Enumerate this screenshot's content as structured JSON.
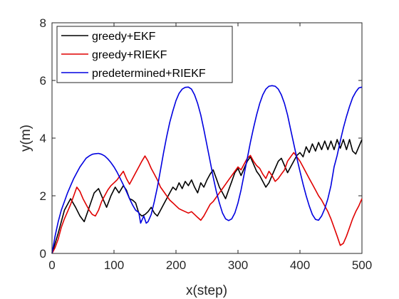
{
  "chart_data": {
    "type": "line",
    "title": "",
    "xlabel": "x(step)",
    "ylabel": "y(m)",
    "xlim": [
      0,
      500
    ],
    "ylim": [
      0,
      8
    ],
    "xticks": [
      "0",
      "100",
      "200",
      "300",
      "400",
      "500"
    ],
    "yticks": [
      "0",
      "2",
      "4",
      "6",
      "8"
    ],
    "grid": false,
    "legend_position": "top-left",
    "series": [
      {
        "name": "greedy+EKF",
        "color": "#000000",
        "points": [
          [
            0,
            0
          ],
          [
            10,
            0.7
          ],
          [
            20,
            1.5
          ],
          [
            30,
            1.9
          ],
          [
            38,
            1.6
          ],
          [
            45,
            1.3
          ],
          [
            52,
            1.1
          ],
          [
            60,
            1.6
          ],
          [
            68,
            2.1
          ],
          [
            75,
            2.25
          ],
          [
            82,
            1.9
          ],
          [
            88,
            1.6
          ],
          [
            95,
            2.0
          ],
          [
            102,
            2.3
          ],
          [
            108,
            2.1
          ],
          [
            115,
            2.35
          ],
          [
            120,
            2.2
          ],
          [
            125,
            1.9
          ],
          [
            130,
            1.85
          ],
          [
            135,
            1.75
          ],
          [
            140,
            1.4
          ],
          [
            145,
            1.3
          ],
          [
            150,
            1.35
          ],
          [
            155,
            1.45
          ],
          [
            160,
            1.6
          ],
          [
            165,
            1.4
          ],
          [
            170,
            1.3
          ],
          [
            175,
            1.5
          ],
          [
            180,
            1.7
          ],
          [
            185,
            1.9
          ],
          [
            190,
            2.1
          ],
          [
            195,
            2.3
          ],
          [
            200,
            2.2
          ],
          [
            205,
            2.45
          ],
          [
            210,
            2.25
          ],
          [
            215,
            2.5
          ],
          [
            220,
            2.35
          ],
          [
            225,
            2.55
          ],
          [
            230,
            2.3
          ],
          [
            235,
            2.1
          ],
          [
            240,
            2.45
          ],
          [
            245,
            2.3
          ],
          [
            250,
            2.55
          ],
          [
            255,
            2.75
          ],
          [
            260,
            2.9
          ],
          [
            265,
            2.6
          ],
          [
            270,
            2.3
          ],
          [
            275,
            2.1
          ],
          [
            280,
            1.9
          ],
          [
            285,
            2.2
          ],
          [
            290,
            2.5
          ],
          [
            295,
            2.8
          ],
          [
            300,
            2.95
          ],
          [
            305,
            2.7
          ],
          [
            310,
            2.95
          ],
          [
            315,
            3.2
          ],
          [
            320,
            3.35
          ],
          [
            325,
            3.1
          ],
          [
            330,
            2.85
          ],
          [
            335,
            2.7
          ],
          [
            340,
            2.5
          ],
          [
            345,
            2.3
          ],
          [
            350,
            2.45
          ],
          [
            355,
            2.7
          ],
          [
            360,
            2.95
          ],
          [
            365,
            3.2
          ],
          [
            370,
            3.3
          ],
          [
            375,
            3.05
          ],
          [
            380,
            2.8
          ],
          [
            385,
            3.0
          ],
          [
            390,
            3.2
          ],
          [
            395,
            3.4
          ],
          [
            400,
            3.5
          ],
          [
            405,
            3.35
          ],
          [
            410,
            3.7
          ],
          [
            415,
            3.5
          ],
          [
            420,
            3.8
          ],
          [
            425,
            3.55
          ],
          [
            430,
            3.85
          ],
          [
            435,
            3.6
          ],
          [
            440,
            3.9
          ],
          [
            445,
            3.6
          ],
          [
            450,
            3.9
          ],
          [
            455,
            3.6
          ],
          [
            460,
            3.95
          ],
          [
            465,
            3.65
          ],
          [
            470,
            3.95
          ],
          [
            475,
            3.6
          ],
          [
            480,
            3.95
          ],
          [
            485,
            3.55
          ],
          [
            490,
            3.45
          ],
          [
            495,
            3.7
          ],
          [
            500,
            3.95
          ]
        ]
      },
      {
        "name": "greedy+RIEKF",
        "color": "#e00000",
        "points": [
          [
            0,
            0
          ],
          [
            5,
            0.2
          ],
          [
            10,
            0.5
          ],
          [
            15,
            0.9
          ],
          [
            20,
            1.2
          ],
          [
            25,
            1.45
          ],
          [
            30,
            1.7
          ],
          [
            35,
            2.0
          ],
          [
            40,
            2.3
          ],
          [
            45,
            2.15
          ],
          [
            50,
            1.9
          ],
          [
            55,
            1.7
          ],
          [
            60,
            1.5
          ],
          [
            65,
            1.35
          ],
          [
            70,
            1.3
          ],
          [
            75,
            1.5
          ],
          [
            80,
            1.8
          ],
          [
            85,
            2.0
          ],
          [
            90,
            2.2
          ],
          [
            95,
            2.35
          ],
          [
            100,
            2.45
          ],
          [
            105,
            2.55
          ],
          [
            110,
            2.7
          ],
          [
            115,
            2.85
          ],
          [
            120,
            2.6
          ],
          [
            125,
            2.4
          ],
          [
            130,
            2.6
          ],
          [
            135,
            2.8
          ],
          [
            140,
            3.0
          ],
          [
            145,
            3.2
          ],
          [
            150,
            3.38
          ],
          [
            155,
            3.2
          ],
          [
            160,
            2.95
          ],
          [
            165,
            2.75
          ],
          [
            170,
            2.55
          ],
          [
            175,
            2.3
          ],
          [
            180,
            2.15
          ],
          [
            185,
            2.0
          ],
          [
            190,
            1.85
          ],
          [
            195,
            1.75
          ],
          [
            200,
            1.65
          ],
          [
            205,
            1.55
          ],
          [
            210,
            1.5
          ],
          [
            215,
            1.45
          ],
          [
            220,
            1.4
          ],
          [
            225,
            1.45
          ],
          [
            230,
            1.35
          ],
          [
            235,
            1.25
          ],
          [
            240,
            1.15
          ],
          [
            245,
            1.3
          ],
          [
            250,
            1.5
          ],
          [
            255,
            1.7
          ],
          [
            260,
            1.8
          ],
          [
            265,
            1.95
          ],
          [
            270,
            2.1
          ],
          [
            275,
            2.25
          ],
          [
            280,
            2.4
          ],
          [
            285,
            2.55
          ],
          [
            290,
            2.7
          ],
          [
            295,
            2.85
          ],
          [
            300,
            3.0
          ],
          [
            305,
            2.9
          ],
          [
            310,
            3.1
          ],
          [
            315,
            3.3
          ],
          [
            320,
            3.4
          ],
          [
            325,
            3.2
          ],
          [
            330,
            3.05
          ],
          [
            335,
            2.95
          ],
          [
            340,
            2.75
          ],
          [
            345,
            2.6
          ],
          [
            350,
            2.85
          ],
          [
            355,
            2.7
          ],
          [
            360,
            2.5
          ],
          [
            365,
            2.6
          ],
          [
            370,
            2.75
          ],
          [
            375,
            2.9
          ],
          [
            380,
            3.2
          ],
          [
            385,
            3.35
          ],
          [
            390,
            3.5
          ],
          [
            395,
            3.35
          ],
          [
            400,
            3.2
          ],
          [
            405,
            3.0
          ],
          [
            410,
            2.8
          ],
          [
            415,
            2.6
          ],
          [
            420,
            2.4
          ],
          [
            425,
            2.2
          ],
          [
            430,
            2.0
          ],
          [
            435,
            1.85
          ],
          [
            440,
            1.65
          ],
          [
            445,
            1.45
          ],
          [
            450,
            1.2
          ],
          [
            455,
            0.9
          ],
          [
            460,
            0.6
          ],
          [
            465,
            0.28
          ],
          [
            470,
            0.35
          ],
          [
            475,
            0.6
          ],
          [
            480,
            0.9
          ],
          [
            485,
            1.2
          ],
          [
            490,
            1.45
          ],
          [
            495,
            1.65
          ],
          [
            500,
            1.9
          ]
        ]
      },
      {
        "name": "predetermined+RIEKF",
        "color": "#0000e0",
        "points": [
          [
            0,
            0
          ],
          [
            5,
            0.6
          ],
          [
            10,
            1.1
          ],
          [
            15,
            1.5
          ],
          [
            20,
            1.8
          ],
          [
            25,
            2.1
          ],
          [
            30,
            2.35
          ],
          [
            35,
            2.6
          ],
          [
            40,
            2.8
          ],
          [
            45,
            3.0
          ],
          [
            50,
            3.15
          ],
          [
            55,
            3.3
          ],
          [
            60,
            3.38
          ],
          [
            65,
            3.44
          ],
          [
            70,
            3.46
          ],
          [
            75,
            3.47
          ],
          [
            80,
            3.44
          ],
          [
            85,
            3.38
          ],
          [
            90,
            3.28
          ],
          [
            95,
            3.15
          ],
          [
            100,
            3.0
          ],
          [
            105,
            2.82
          ],
          [
            110,
            2.6
          ],
          [
            115,
            2.38
          ],
          [
            120,
            2.15
          ],
          [
            125,
            1.9
          ],
          [
            130,
            1.68
          ],
          [
            135,
            1.5
          ],
          [
            140,
            1.42
          ],
          [
            143,
            1.05
          ],
          [
            145,
            1.15
          ],
          [
            148,
            1.3
          ],
          [
            152,
            1.05
          ],
          [
            155,
            1.1
          ],
          [
            160,
            1.35
          ],
          [
            165,
            1.8
          ],
          [
            170,
            2.3
          ],
          [
            175,
            2.9
          ],
          [
            180,
            3.5
          ],
          [
            185,
            4.05
          ],
          [
            190,
            4.55
          ],
          [
            195,
            4.95
          ],
          [
            200,
            5.3
          ],
          [
            205,
            5.55
          ],
          [
            210,
            5.7
          ],
          [
            215,
            5.76
          ],
          [
            220,
            5.77
          ],
          [
            225,
            5.7
          ],
          [
            230,
            5.5
          ],
          [
            235,
            5.2
          ],
          [
            240,
            4.8
          ],
          [
            245,
            4.3
          ],
          [
            250,
            3.75
          ],
          [
            255,
            3.2
          ],
          [
            260,
            2.65
          ],
          [
            265,
            2.15
          ],
          [
            270,
            1.75
          ],
          [
            275,
            1.4
          ],
          [
            280,
            1.2
          ],
          [
            285,
            1.14
          ],
          [
            290,
            1.2
          ],
          [
            295,
            1.4
          ],
          [
            300,
            1.75
          ],
          [
            305,
            2.2
          ],
          [
            310,
            2.75
          ],
          [
            315,
            3.3
          ],
          [
            320,
            3.85
          ],
          [
            325,
            4.35
          ],
          [
            330,
            4.8
          ],
          [
            335,
            5.2
          ],
          [
            340,
            5.5
          ],
          [
            345,
            5.7
          ],
          [
            350,
            5.8
          ],
          [
            355,
            5.82
          ],
          [
            360,
            5.8
          ],
          [
            365,
            5.7
          ],
          [
            370,
            5.5
          ],
          [
            375,
            5.2
          ],
          [
            380,
            4.8
          ],
          [
            385,
            4.3
          ],
          [
            390,
            3.8
          ],
          [
            395,
            3.3
          ],
          [
            400,
            2.85
          ],
          [
            405,
            2.4
          ],
          [
            410,
            2.0
          ],
          [
            415,
            1.65
          ],
          [
            420,
            1.35
          ],
          [
            425,
            1.18
          ],
          [
            430,
            1.15
          ],
          [
            435,
            1.3
          ],
          [
            440,
            1.55
          ],
          [
            445,
            1.9
          ],
          [
            450,
            2.35
          ],
          [
            455,
            3.0
          ],
          [
            460,
            3.4
          ],
          [
            465,
            3.9
          ],
          [
            470,
            4.35
          ],
          [
            475,
            4.75
          ],
          [
            480,
            5.1
          ],
          [
            485,
            5.4
          ],
          [
            490,
            5.6
          ],
          [
            495,
            5.74
          ],
          [
            500,
            5.77
          ]
        ]
      }
    ]
  }
}
